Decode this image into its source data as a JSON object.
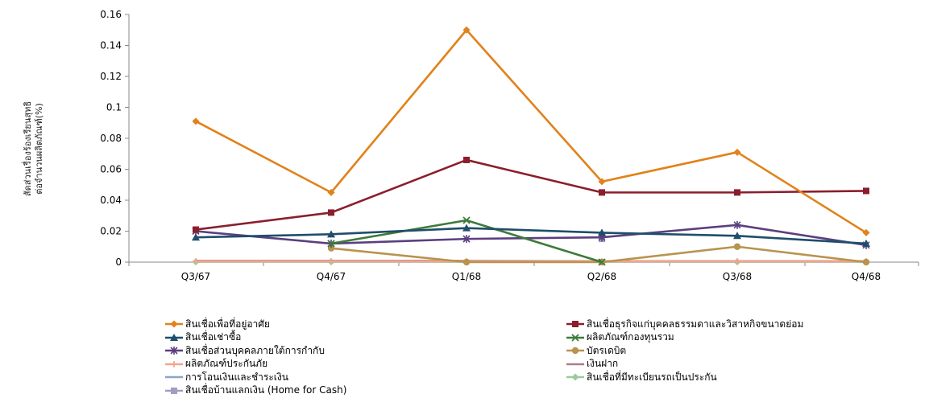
{
  "chart_data": {
    "type": "line",
    "title": "",
    "xlabel": "",
    "ylabel_lines": [
      "สัดส่วนเรื่องร้องเรียนสุทธิ",
      "ต่อจำนวนผลิตภัณฑ์(%)"
    ],
    "ylim": [
      0,
      0.16
    ],
    "yticks": [
      0,
      0.02,
      0.04,
      0.06,
      0.08,
      0.1,
      0.12,
      0.14,
      0.16
    ],
    "ytick_labels": [
      "0",
      "0.02",
      "0.04",
      "0.06",
      "0.08",
      "0.1",
      "0.12",
      "0.14",
      "0.16"
    ],
    "categories": [
      "Q3/67",
      "Q4/67",
      "Q1/68",
      "Q2/68",
      "Q3/68",
      "Q4/68"
    ],
    "grid": false,
    "legend_position": "bottom",
    "series": [
      {
        "name": "สินเชื่อเพื่อที่อยู่อาศัย",
        "color": "#E1821A",
        "marker": "diamond",
        "values": [
          0.091,
          0.045,
          0.15,
          0.052,
          0.071,
          0.019
        ]
      },
      {
        "name": "สินเชื่อธุรกิจแก่บุคคลธรรมดาและวิสาหกิจขนาดย่อม",
        "color": "#8B1E2D",
        "marker": "square",
        "values": [
          0.021,
          0.032,
          0.066,
          0.045,
          0.045,
          0.046
        ]
      },
      {
        "name": "สินเชื่อเช่าซื้อ",
        "color": "#1F4E6B",
        "marker": "triangle",
        "values": [
          0.016,
          0.018,
          0.022,
          0.019,
          0.017,
          0.012
        ]
      },
      {
        "name": "ผลิตภัณฑ์กองทุนรวม",
        "color": "#3D7B3A",
        "marker": "x",
        "values": [
          null,
          0.012,
          0.027,
          0.0,
          null,
          null
        ]
      },
      {
        "name": "สินเชื่อส่วนบุคคลภายใต้การกำกับ",
        "color": "#5B3F80",
        "marker": "star",
        "values": [
          0.02,
          0.012,
          0.015,
          0.016,
          0.024,
          0.011
        ]
      },
      {
        "name": "บัตรเดบิต",
        "color": "#B8944E",
        "marker": "circle",
        "values": [
          null,
          0.009,
          0.0,
          0.0,
          0.01,
          0.0
        ]
      },
      {
        "name": "ผลิตภัณฑ์ประกันภัย",
        "color": "#F2A58A",
        "marker": "plus",
        "values": [
          0.0005,
          0.0005,
          0.0005,
          0.0005,
          0.0005,
          0.0005
        ]
      },
      {
        "name": "เงินฝาก",
        "color": "#B07A8A",
        "marker": "none",
        "values": [
          0.0008,
          0.0008,
          0.0008,
          0.0006,
          0.0006,
          0.0006
        ]
      },
      {
        "name": "การโอนเงินและชำระเงิน",
        "color": "#8BA4C8",
        "marker": "none",
        "values": [
          0.0004,
          0.0004,
          0.0004,
          0.0004,
          0.0004,
          0.0004
        ]
      },
      {
        "name": "สินเชื่อที่มีทะเบียนรถเป็นประกัน",
        "color": "#9BCB9B",
        "marker": "diamond",
        "values": [
          0.0002,
          0.0002,
          0.0002,
          0.0002,
          0.0002,
          0.0002
        ]
      },
      {
        "name": "สินเชื่อบ้านแลกเงิน (Home for Cash)",
        "color": "#A49BC2",
        "marker": "square",
        "values": [
          null,
          null,
          null,
          0.015,
          null,
          null
        ]
      }
    ]
  }
}
